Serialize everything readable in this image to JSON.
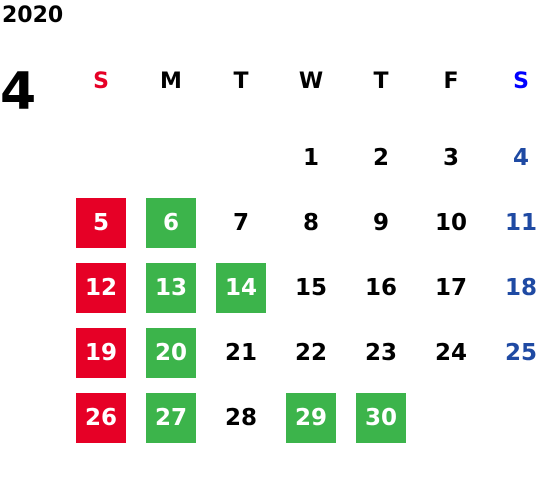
{
  "calendar": {
    "year": "2020",
    "month": "4",
    "weekdays": [
      {
        "label": "S",
        "color": "#e60026"
      },
      {
        "label": "M",
        "color": "#000000"
      },
      {
        "label": "T",
        "color": "#000000"
      },
      {
        "label": "W",
        "color": "#000000"
      },
      {
        "label": "T",
        "color": "#000000"
      },
      {
        "label": "F",
        "color": "#000000"
      },
      {
        "label": "S",
        "color": "#0000ff"
      }
    ],
    "days": [
      {
        "day": "",
        "style": "empty"
      },
      {
        "day": "",
        "style": "empty"
      },
      {
        "day": "",
        "style": "empty"
      },
      {
        "day": "1",
        "style": "plain"
      },
      {
        "day": "2",
        "style": "plain"
      },
      {
        "day": "3",
        "style": "plain"
      },
      {
        "day": "4",
        "style": "blue"
      },
      {
        "day": "5",
        "style": "red"
      },
      {
        "day": "6",
        "style": "green"
      },
      {
        "day": "7",
        "style": "plain"
      },
      {
        "day": "8",
        "style": "plain"
      },
      {
        "day": "9",
        "style": "plain"
      },
      {
        "day": "10",
        "style": "plain"
      },
      {
        "day": "11",
        "style": "blue"
      },
      {
        "day": "12",
        "style": "red"
      },
      {
        "day": "13",
        "style": "green"
      },
      {
        "day": "14",
        "style": "green"
      },
      {
        "day": "15",
        "style": "plain"
      },
      {
        "day": "16",
        "style": "plain"
      },
      {
        "day": "17",
        "style": "plain"
      },
      {
        "day": "18",
        "style": "blue"
      },
      {
        "day": "19",
        "style": "red"
      },
      {
        "day": "20",
        "style": "green"
      },
      {
        "day": "21",
        "style": "plain"
      },
      {
        "day": "22",
        "style": "plain"
      },
      {
        "day": "23",
        "style": "plain"
      },
      {
        "day": "24",
        "style": "plain"
      },
      {
        "day": "25",
        "style": "blue"
      },
      {
        "day": "26",
        "style": "red"
      },
      {
        "day": "27",
        "style": "green"
      },
      {
        "day": "28",
        "style": "plain"
      },
      {
        "day": "29",
        "style": "green"
      },
      {
        "day": "30",
        "style": "green"
      }
    ],
    "colors": {
      "sunday_bg": "#e60026",
      "highlight_bg": "#3cb44b",
      "saturday_text": "#1f4aa3"
    }
  }
}
